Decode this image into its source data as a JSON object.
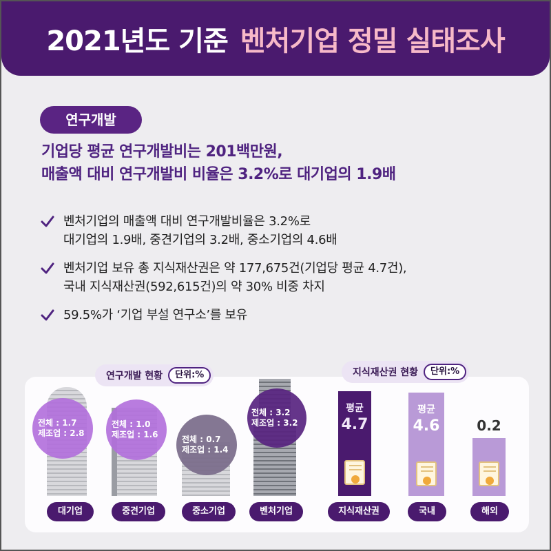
{
  "header": {
    "title_white": "2021년도 기준",
    "title_pink": "벤처기업 정밀 실태조사"
  },
  "section_label": "연구개발",
  "headline": {
    "line1": "기업당 평균 연구개발비는 201백만원,",
    "line2": "매출액 대비 연구개발비 비율은 3.2%로 대기업의 1.9배"
  },
  "bullets": [
    {
      "line1": "벤처기업의 매출액 대비 연구개발비율은 3.2%로",
      "line2": "대기업의 1.9배, 중견기업의 3.2배, 중소기업의 4.6배"
    },
    {
      "line1": "벤처기업 보유 총 지식재산권은 약 177,675건(기업당 평균 4.7건),",
      "line2": "국내 지식재산권(592,615건)의 약 30% 비중 차지"
    },
    {
      "line1": "59.5%가 ‘기업 부설 연구소’를 보유",
      "line2": ""
    }
  ],
  "icons": {
    "check": "check-icon",
    "building": "building-icon",
    "certificate": "certificate-icon"
  },
  "colors": {
    "brand_purple": "#4a1a6e",
    "accent_pink": "#f7b9c8",
    "headline_purple": "#4f2380",
    "circle_light": "#b87be0",
    "circle_gray": "#7a6f86",
    "circle_dark": "#5a2483"
  },
  "rd_chart": {
    "legend": "연구개발 현황",
    "unit": "단위:%",
    "items": [
      {
        "category": "대기업",
        "total": "전체 : 1.7",
        "manufacturing": "제조업 : 2.8"
      },
      {
        "category": "중견기업",
        "total": "전체 : 1.0",
        "manufacturing": "제조업 : 1.6"
      },
      {
        "category": "중소기업",
        "total": "전체 : 0.7",
        "manufacturing": "제조업 : 1.4"
      },
      {
        "category": "벤처기업",
        "total": "전체 : 3.2",
        "manufacturing": "제조업 : 3.2"
      }
    ]
  },
  "ip_chart": {
    "legend": "지식재산권 현황",
    "unit": "단위:%",
    "items": [
      {
        "category": "지식재산권",
        "prefix": "평균",
        "value": "4.7"
      },
      {
        "category": "국내",
        "prefix": "평균",
        "value": "4.6"
      },
      {
        "category": "해외",
        "prefix": "",
        "value": "0.2"
      }
    ]
  }
}
